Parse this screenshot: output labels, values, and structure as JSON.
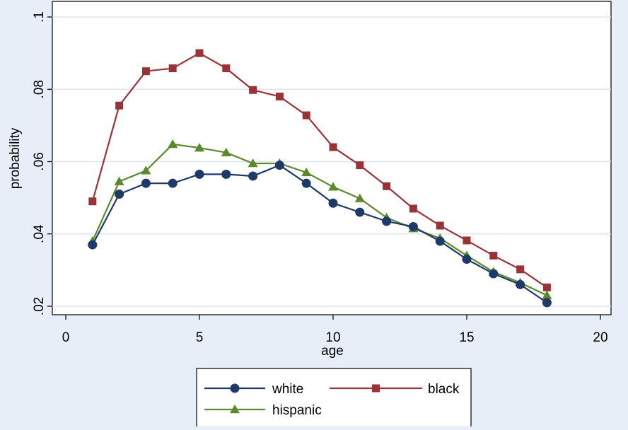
{
  "chart_data": {
    "type": "line",
    "title": "",
    "xlabel": "age",
    "ylabel": "probability",
    "xlim": [
      0,
      20
    ],
    "ylim": [
      0.02,
      0.1
    ],
    "xticks": [
      0,
      5,
      10,
      15,
      20
    ],
    "xtick_labels": [
      "0",
      "5",
      "10",
      "15",
      "20"
    ],
    "yticks": [
      0.02,
      0.04,
      0.06,
      0.08,
      0.1
    ],
    "ytick_labels": [
      ".02",
      ".04",
      ".06",
      ".08",
      ".1"
    ],
    "grid": true,
    "legend_position": "bottom",
    "colors": {
      "background": "#e8eef8",
      "plot_background": "#ffffff",
      "gridline": "#dde6f2"
    },
    "x": [
      1,
      2,
      3,
      4,
      5,
      6,
      7,
      8,
      9,
      10,
      11,
      12,
      13,
      14,
      15,
      16,
      17,
      18
    ],
    "series": [
      {
        "name": "white",
        "color": "#1e3a68",
        "marker": "circle",
        "values": [
          0.037,
          0.051,
          0.054,
          0.054,
          0.0565,
          0.0565,
          0.056,
          0.059,
          0.054,
          0.0485,
          0.046,
          0.0435,
          0.042,
          0.038,
          0.033,
          0.029,
          0.026,
          0.021
        ]
      },
      {
        "name": "black",
        "color": "#993338",
        "marker": "square",
        "values": [
          0.049,
          0.0755,
          0.085,
          0.0858,
          0.09,
          0.0858,
          0.0798,
          0.078,
          0.0728,
          0.064,
          0.059,
          0.0532,
          0.047,
          0.0423,
          0.0382,
          0.034,
          0.0302,
          0.0252
        ]
      },
      {
        "name": "hispanic",
        "color": "#5b8a2c",
        "marker": "triangle",
        "values": [
          0.038,
          0.0545,
          0.0575,
          0.0648,
          0.0638,
          0.0625,
          0.0595,
          0.0595,
          0.057,
          0.053,
          0.0498,
          0.0445,
          0.0415,
          0.0388,
          0.034,
          0.0295,
          0.0265,
          0.023
        ]
      }
    ]
  }
}
